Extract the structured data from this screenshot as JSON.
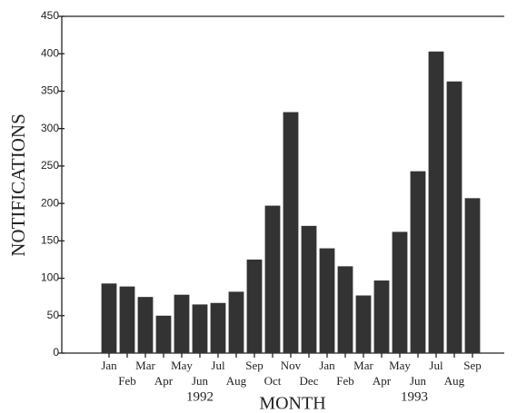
{
  "chart_data": {
    "type": "bar",
    "x_label": "MONTH",
    "y_label": "NOTIFICATIONS",
    "categories": [
      "Jan",
      "Feb",
      "Mar",
      "Apr",
      "May",
      "Jun",
      "Jul",
      "Aug",
      "Sep",
      "Oct",
      "Nov",
      "Dec",
      "Jan",
      "Feb",
      "Mar",
      "Apr",
      "May",
      "Jun",
      "Jul",
      "Aug",
      "Sep"
    ],
    "values": [
      93,
      89,
      75,
      50,
      78,
      65,
      67,
      82,
      125,
      197,
      322,
      170,
      140,
      116,
      77,
      97,
      162,
      243,
      403,
      363,
      207
    ],
    "annotations": [
      "1992",
      "1993"
    ],
    "color": "#333333",
    "ylim": [
      0,
      450
    ],
    "yticks": [
      0,
      50,
      100,
      150,
      200,
      250,
      300,
      350,
      400,
      450
    ],
    "grid": false
  }
}
